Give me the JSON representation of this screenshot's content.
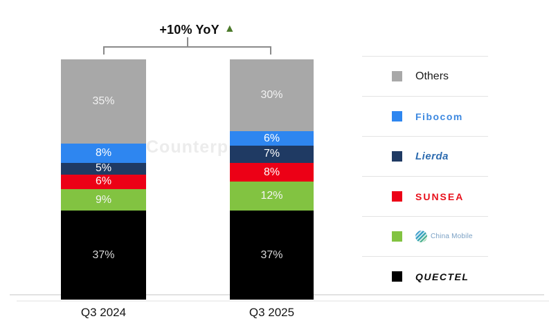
{
  "watermark": "Counterp",
  "annotation": {
    "text": "+10% YoY",
    "arrow": "▲",
    "arrow_color": "#4c7a2b"
  },
  "chart_data": {
    "type": "bar",
    "stacked": true,
    "title": "",
    "annotation": "+10% YoY",
    "value_suffix": "%",
    "categories": [
      "Q3 2024",
      "Q3 2025"
    ],
    "series": [
      {
        "name": "Quectel",
        "brand": "quectel",
        "color": "#000000",
        "label_color": "#d8d8d8",
        "values": [
          37,
          37
        ]
      },
      {
        "name": "China Mobile",
        "brand": "china-mobile",
        "color": "#82c341",
        "label_color": "#f5f5f5",
        "values": [
          9,
          12
        ]
      },
      {
        "name": "Sunsea",
        "brand": "sunsea",
        "color": "#ec0016",
        "label_color": "#ffffff",
        "values": [
          6,
          8
        ]
      },
      {
        "name": "Lierda",
        "brand": "lierda",
        "color": "#1f3a63",
        "label_color": "#ffffff",
        "values": [
          5,
          7
        ]
      },
      {
        "name": "Fibocom",
        "brand": "fibocom",
        "color": "#2e86f0",
        "label_color": "#ffffff",
        "values": [
          8,
          6
        ]
      },
      {
        "name": "Others",
        "brand": "others",
        "color": "#a8a8a8",
        "label_color": "#f2f2f2",
        "values": [
          35,
          30
        ]
      }
    ],
    "legend_position": "right",
    "grid": false,
    "ylim": [
      0,
      100
    ]
  },
  "legend": {
    "items": [
      {
        "label": "Others",
        "brand": "others",
        "color": "#a8a8a8",
        "has_icon": false
      },
      {
        "label": "Fibocom",
        "brand": "fibocom",
        "color": "#2e86f0",
        "has_icon": false
      },
      {
        "label": "Lierda",
        "brand": "lierda",
        "color": "#1f3a63",
        "has_icon": false
      },
      {
        "label": "SUNSEA",
        "brand": "sunsea",
        "color": "#ec0016",
        "has_icon": false
      },
      {
        "label": "China Mobile",
        "brand": "china-mobile",
        "color": "#82c341",
        "has_icon": true
      },
      {
        "label": "QUECTEL",
        "brand": "quectel",
        "color": "#000000",
        "has_icon": false
      }
    ]
  }
}
